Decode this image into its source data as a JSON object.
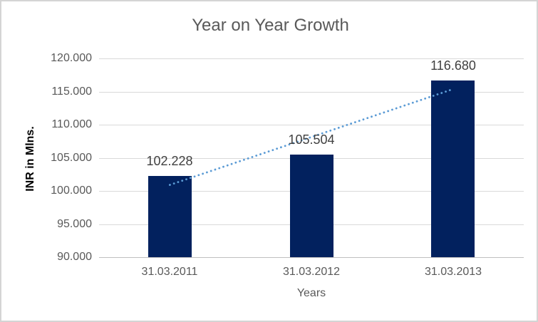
{
  "chart_data": {
    "type": "bar",
    "title": "Year on Year Growth",
    "xlabel": "Years",
    "ylabel": "INR in Mlns.",
    "categories": [
      "31.03.2011",
      "31.03.2012",
      "31.03.2013"
    ],
    "values": [
      102.228,
      105.504,
      116.68
    ],
    "value_labels": [
      "102.228",
      "105.504",
      "116.680"
    ],
    "ylim": [
      90,
      120
    ],
    "ytick_step": 5,
    "ytick_labels": [
      "120.000",
      "115.000",
      "110.000",
      "105.000",
      "100.000",
      "95.000",
      "90.000"
    ],
    "grid": true,
    "legend": "none",
    "trendline": {
      "style": "dotted",
      "start_value": 100.911,
      "end_value": 115.363,
      "color": "#5b9bd5"
    },
    "colors": {
      "bar": "#02215e",
      "gridline": "#d9d9d9",
      "axis_line": "#bfbfbf",
      "tick_label": "#595959",
      "data_label": "#404040",
      "title": "#595959",
      "background": "#ffffff",
      "border": "#d4d4d4"
    }
  }
}
